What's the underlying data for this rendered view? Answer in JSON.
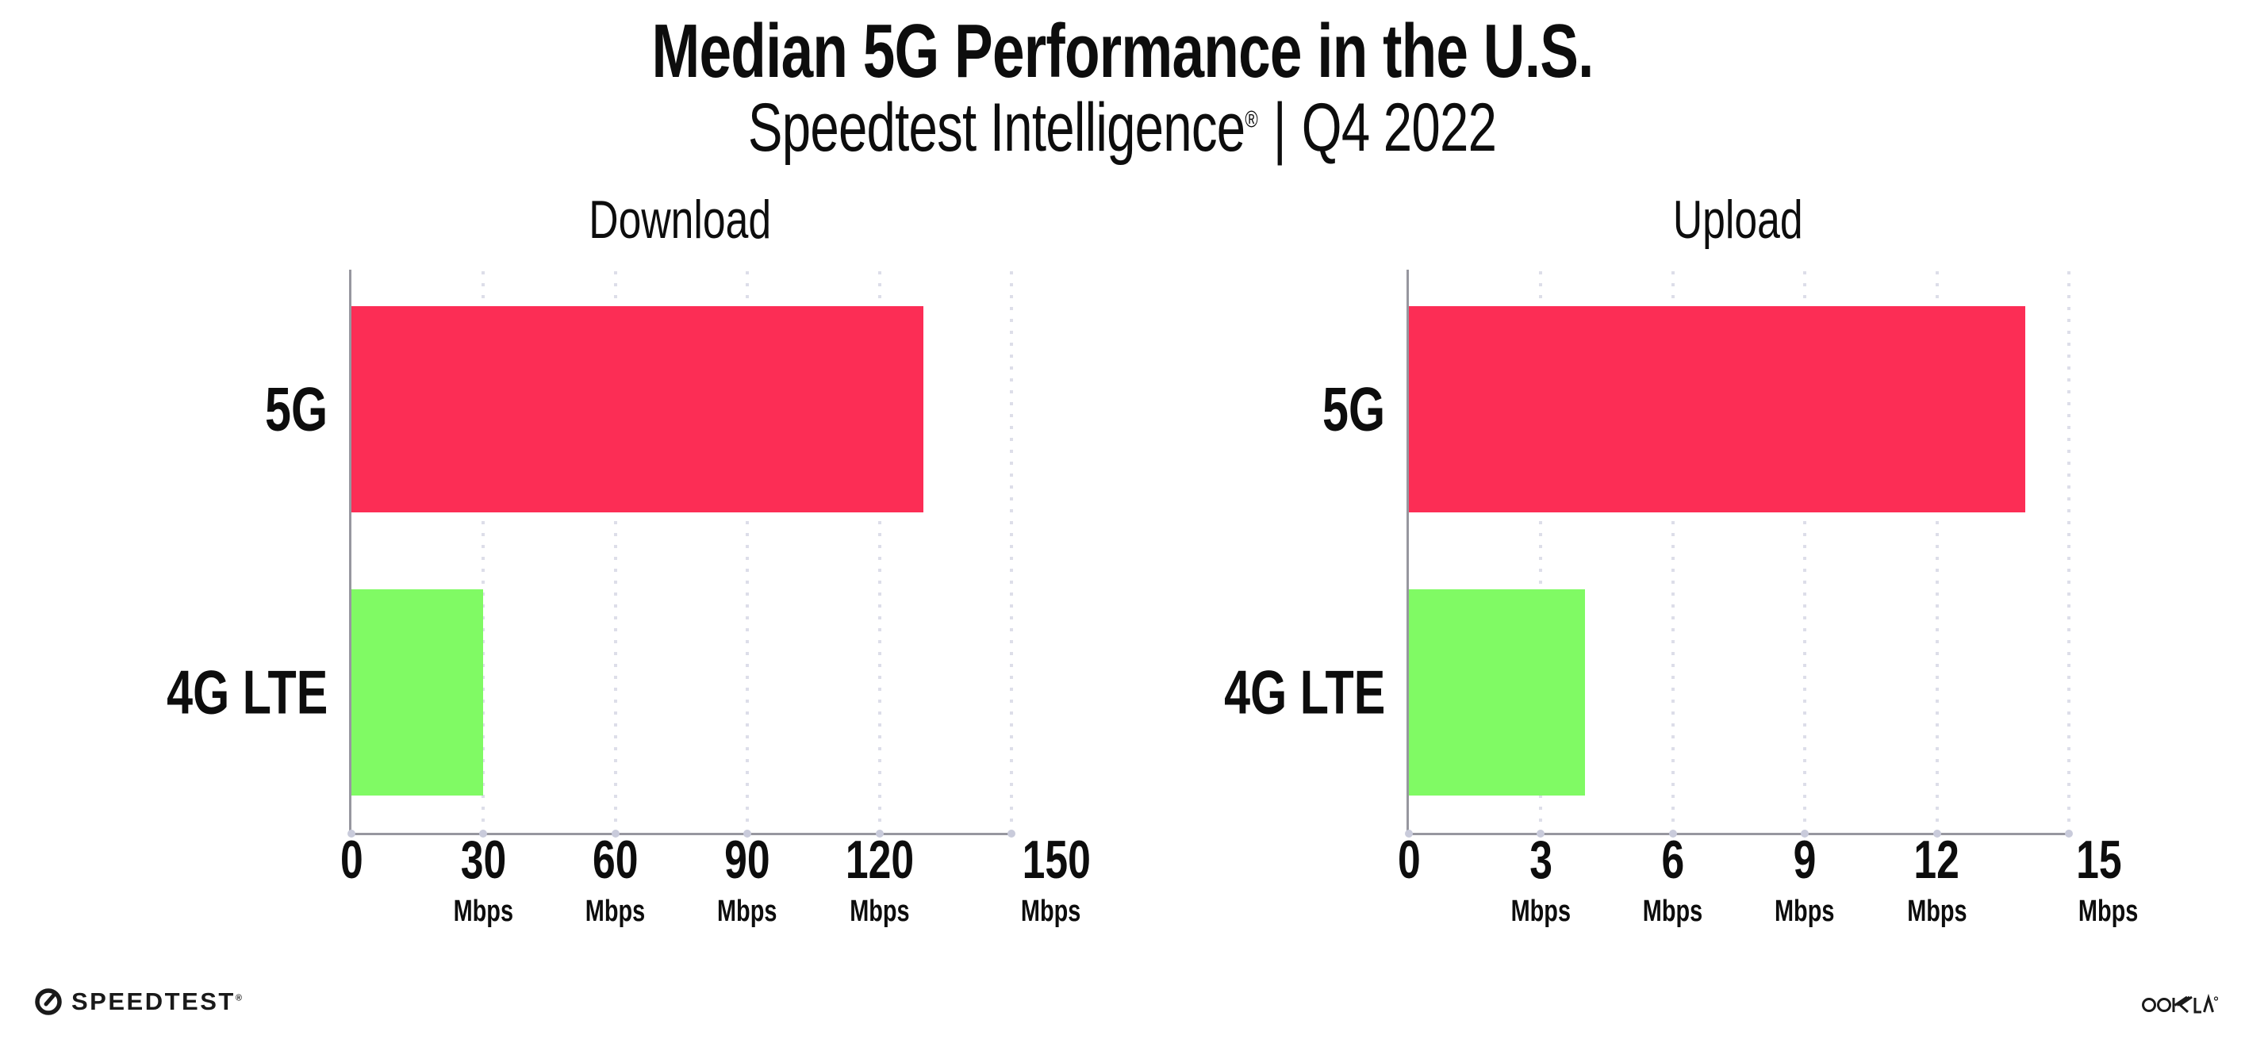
{
  "header": {
    "title": "Median 5G Performance in the U.S.",
    "subtitle_brand": "Speedtest Intelligence",
    "subtitle_reg": "®",
    "subtitle_sep": "|",
    "subtitle_period": "Q4 2022"
  },
  "chart_data": [
    {
      "type": "bar",
      "orientation": "horizontal",
      "title": "Download",
      "categories": [
        "5G",
        "4G LTE"
      ],
      "values": [
        130,
        30
      ],
      "unit": "Mbps",
      "xlim": [
        0,
        150
      ],
      "xticks": [
        0,
        30,
        60,
        90,
        120,
        150
      ],
      "bar_colors": [
        "#fc2d55",
        "#80fa64"
      ],
      "grid": "dotted-vertical",
      "legend": "none"
    },
    {
      "type": "bar",
      "orientation": "horizontal",
      "title": "Upload",
      "categories": [
        "5G",
        "4G LTE"
      ],
      "values": [
        14,
        4
      ],
      "unit": "Mbps",
      "xlim": [
        0,
        15
      ],
      "xticks": [
        0,
        3,
        6,
        9,
        12,
        15
      ],
      "bar_colors": [
        "#fc2d55",
        "#80fa64"
      ],
      "grid": "dotted-vertical",
      "legend": "none"
    }
  ],
  "footer": {
    "speedtest_label": "SPEEDTEST",
    "speedtest_reg": "®",
    "ookla_label": "OOKLA"
  },
  "colors": {
    "bar_5g": "#fc2d55",
    "bar_4g_lte": "#80fa64",
    "axis": "#97979f",
    "gridline": "#dddee9",
    "tick_dot": "#c9cbdb",
    "text": "#0d0d0d",
    "background": "#ffffff"
  }
}
